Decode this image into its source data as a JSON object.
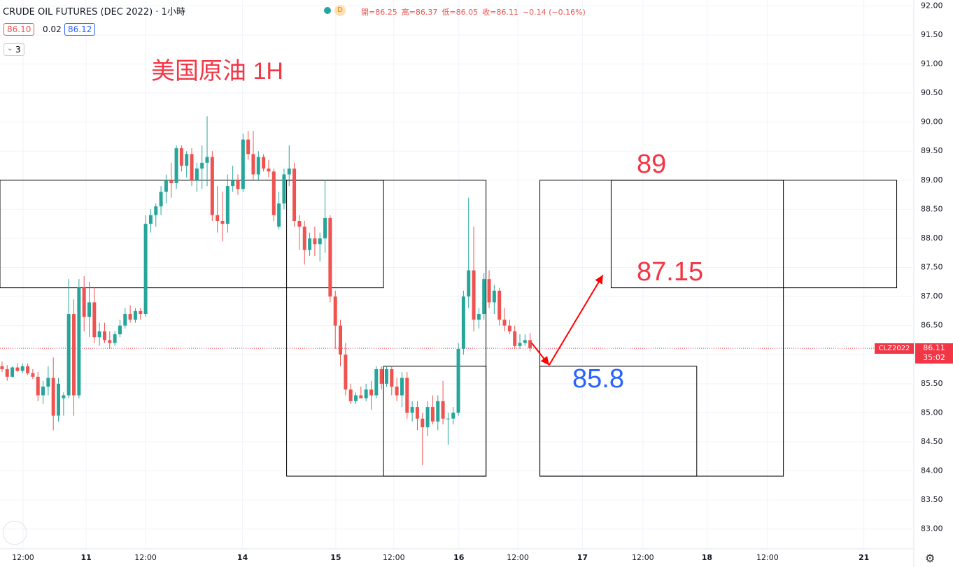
{
  "chart_data": {
    "type": "candlestick",
    "title": "CRUDE OIL FUTURES (DEC 2022) · 1小時",
    "bid": "86.10",
    "spread": "0.02",
    "ask": "86.12",
    "indicator_count": "3",
    "ohlc_legend": [
      "開=86.25",
      "高=86.37",
      "低=86.05",
      "收=86.11",
      "−0.14 (−0.16%)"
    ],
    "annotations": [
      "美国原油 1H",
      "89",
      "87.15",
      "85.8"
    ],
    "symbol": "CLZ2022",
    "last_price": 86.11,
    "countdown": "35:02",
    "up_color": "#26a69a",
    "down_color": "#ef5350",
    "grid": true,
    "ylim": [
      82.66,
      92.1
    ],
    "yticks": [
      {
        "value": 83,
        "label": "83.00"
      },
      {
        "value": 83.5,
        "label": "83.50"
      },
      {
        "value": 84,
        "label": "84.00"
      },
      {
        "value": 84.5,
        "label": "84.50"
      },
      {
        "value": 85,
        "label": "85.00"
      },
      {
        "value": 85.5,
        "label": "85.50"
      },
      {
        "value": 86,
        "label": "86.00"
      },
      {
        "value": 86.5,
        "label": "86.50"
      },
      {
        "value": 87,
        "label": "87.00"
      },
      {
        "value": 87.5,
        "label": "87.50"
      },
      {
        "value": 88,
        "label": "88.00"
      },
      {
        "value": 88.5,
        "label": "88.50"
      },
      {
        "value": 89,
        "label": "89.00"
      },
      {
        "value": 89.5,
        "label": "89.50"
      },
      {
        "value": 90,
        "label": "90.00"
      },
      {
        "value": 90.5,
        "label": "90.50"
      },
      {
        "value": 91,
        "label": "91.00"
      },
      {
        "value": 91.5,
        "label": "91.50"
      },
      {
        "value": 92,
        "label": "92.00"
      }
    ],
    "xlim": [
      -0.4,
      177.7
    ],
    "xticks": [
      {
        "value": 4.1,
        "label": "12:00"
      },
      {
        "value": 16.4,
        "label": "11"
      },
      {
        "value": 28,
        "label": "12:00"
      },
      {
        "value": 46.9,
        "label": "14"
      },
      {
        "value": 65.1,
        "label": "15"
      },
      {
        "value": 76.4,
        "label": "12:00"
      },
      {
        "value": 89.1,
        "label": "16"
      },
      {
        "value": 100.6,
        "label": "12:00"
      },
      {
        "value": 113.2,
        "label": "17"
      },
      {
        "value": 125,
        "label": "12:00"
      },
      {
        "value": 137.5,
        "label": "18"
      },
      {
        "value": 149.3,
        "label": "12:00"
      },
      {
        "value": 168.1,
        "label": "21"
      }
    ],
    "ohlc": [
      [
        85.8,
        85.88,
        85.7,
        85.75
      ],
      [
        85.75,
        85.82,
        85.55,
        85.62
      ],
      [
        85.62,
        85.8,
        85.6,
        85.78
      ],
      [
        85.78,
        85.85,
        85.7,
        85.72
      ],
      [
        85.72,
        85.85,
        85.68,
        85.8
      ],
      [
        85.8,
        85.85,
        85.65,
        85.68
      ],
      [
        85.68,
        85.75,
        85.58,
        85.62
      ],
      [
        85.62,
        85.7,
        85.2,
        85.3
      ],
      [
        85.3,
        85.55,
        85.15,
        85.45
      ],
      [
        85.45,
        85.8,
        85.3,
        85.6
      ],
      [
        85.6,
        85.95,
        84.7,
        84.95
      ],
      [
        84.95,
        85.6,
        84.85,
        85.5
      ],
      [
        85.25,
        85.35,
        84.95,
        85.3
      ],
      [
        85.3,
        87.3,
        85.25,
        86.7
      ],
      [
        86.7,
        86.95,
        84.95,
        85.3
      ],
      [
        85.3,
        87.3,
        85.25,
        87.15
      ],
      [
        87.15,
        87.35,
        86.4,
        86.65
      ],
      [
        86.65,
        87.25,
        86.3,
        86.9
      ],
      [
        86.9,
        87.15,
        86.2,
        86.3
      ],
      [
        86.3,
        86.55,
        86.15,
        86.4
      ],
      [
        86.4,
        86.55,
        86.2,
        86.25
      ],
      [
        86.25,
        86.4,
        86.1,
        86.2
      ],
      [
        86.2,
        86.4,
        86.15,
        86.35
      ],
      [
        86.35,
        86.6,
        86.3,
        86.5
      ],
      [
        86.5,
        86.8,
        86.45,
        86.7
      ],
      [
        86.7,
        86.85,
        86.55,
        86.6
      ],
      [
        86.6,
        86.8,
        86.55,
        86.75
      ],
      [
        86.75,
        86.8,
        86.6,
        86.7
      ],
      [
        86.7,
        88.4,
        86.65,
        88.25
      ],
      [
        88.25,
        88.5,
        88.1,
        88.4
      ],
      [
        88.4,
        88.6,
        88.2,
        88.55
      ],
      [
        88.55,
        88.9,
        88.4,
        88.8
      ],
      [
        88.8,
        89.1,
        88.6,
        89.0
      ],
      [
        89.0,
        89.3,
        88.7,
        88.95
      ],
      [
        88.95,
        89.6,
        88.85,
        89.55
      ],
      [
        89.55,
        89.6,
        89.15,
        89.25
      ],
      [
        89.25,
        89.5,
        89.05,
        89.45
      ],
      [
        89.45,
        89.55,
        88.9,
        89.0
      ],
      [
        89.0,
        89.3,
        88.8,
        89.2
      ],
      [
        89.2,
        89.6,
        88.85,
        89.3
      ],
      [
        89.3,
        90.1,
        88.9,
        89.4
      ],
      [
        89.4,
        89.5,
        88.3,
        88.4
      ],
      [
        88.4,
        88.9,
        88.1,
        88.3
      ],
      [
        88.3,
        88.8,
        87.95,
        88.25
      ],
      [
        88.25,
        89.1,
        88.1,
        88.9
      ],
      [
        88.9,
        89.25,
        88.8,
        89.0
      ],
      [
        89.0,
        89.1,
        88.75,
        88.85
      ],
      [
        88.85,
        89.8,
        88.8,
        89.7
      ],
      [
        89.7,
        89.85,
        89.35,
        89.45
      ],
      [
        89.45,
        89.85,
        89.0,
        89.1
      ],
      [
        89.1,
        89.5,
        89.0,
        89.4
      ],
      [
        89.4,
        89.45,
        89.15,
        89.2
      ],
      [
        89.2,
        89.35,
        89.05,
        89.15
      ],
      [
        89.15,
        89.2,
        88.3,
        88.4
      ],
      [
        88.2,
        88.8,
        88.15,
        88.6
      ],
      [
        88.6,
        89.2,
        88.5,
        89.1
      ],
      [
        89.1,
        89.6,
        88.9,
        89.2
      ],
      [
        89.2,
        89.3,
        88.2,
        88.3
      ],
      [
        88.3,
        88.4,
        87.8,
        88.2
      ],
      [
        88.2,
        88.3,
        87.55,
        87.8
      ],
      [
        87.8,
        88.1,
        87.7,
        88.0
      ],
      [
        88.0,
        88.2,
        87.7,
        87.9
      ],
      [
        87.9,
        88.1,
        87.6,
        88.0
      ],
      [
        88.0,
        89.0,
        87.75,
        88.35
      ],
      [
        88.35,
        88.4,
        86.9,
        87.0
      ],
      [
        87.0,
        87.1,
        86.1,
        86.5
      ],
      [
        86.5,
        86.6,
        85.8,
        86.0
      ],
      [
        86.0,
        86.2,
        85.3,
        85.4
      ],
      [
        85.4,
        85.5,
        85.15,
        85.2
      ],
      [
        85.2,
        85.35,
        85.15,
        85.3
      ],
      [
        85.3,
        85.45,
        85.25,
        85.25
      ],
      [
        85.25,
        85.5,
        85.2,
        85.4
      ],
      [
        85.4,
        85.55,
        85.05,
        85.3
      ],
      [
        85.3,
        85.8,
        85.25,
        85.75
      ],
      [
        85.75,
        85.8,
        85.4,
        85.5
      ],
      [
        85.5,
        85.8,
        85.45,
        85.75
      ],
      [
        85.75,
        85.8,
        85.3,
        85.45
      ],
      [
        85.45,
        85.6,
        85.2,
        85.3
      ],
      [
        85.3,
        85.7,
        85.1,
        85.6
      ],
      [
        85.6,
        85.7,
        84.9,
        85.0
      ],
      [
        85.0,
        85.2,
        84.85,
        85.1
      ],
      [
        85.1,
        85.2,
        84.7,
        84.9
      ],
      [
        84.9,
        85.0,
        84.1,
        84.75
      ],
      [
        84.75,
        85.2,
        84.6,
        85.1
      ],
      [
        85.1,
        85.3,
        84.8,
        84.85
      ],
      [
        84.85,
        85.3,
        84.7,
        85.2
      ],
      [
        85.2,
        85.55,
        84.8,
        84.9
      ],
      [
        84.9,
        85.0,
        84.45,
        84.9
      ],
      [
        84.9,
        85.1,
        84.8,
        85.0
      ],
      [
        85.0,
        86.2,
        84.95,
        86.1
      ],
      [
        86.1,
        87.1,
        86.0,
        87.0
      ],
      [
        87.0,
        88.7,
        86.8,
        87.45
      ],
      [
        87.45,
        88.2,
        86.4,
        86.6
      ],
      [
        86.6,
        86.8,
        86.45,
        86.7
      ],
      [
        86.7,
        87.4,
        86.6,
        87.3
      ],
      [
        87.3,
        87.45,
        86.8,
        86.9
      ],
      [
        86.9,
        87.2,
        86.7,
        87.1
      ],
      [
        87.1,
        87.15,
        86.5,
        86.6
      ],
      [
        86.6,
        86.8,
        86.4,
        86.5
      ],
      [
        86.5,
        86.6,
        86.35,
        86.4
      ],
      [
        86.4,
        86.5,
        86.1,
        86.15
      ],
      [
        86.15,
        86.35,
        86.1,
        86.2
      ],
      [
        86.2,
        86.35,
        86.15,
        86.25
      ],
      [
        86.25,
        86.37,
        86.05,
        86.11
      ]
    ],
    "rectangles": [
      {
        "x0": -0.4,
        "x1": 74.4,
        "y0": 87.15,
        "y1": 89
      },
      {
        "x0": 55.5,
        "x1": 94.4,
        "y0": 83.91,
        "y1": 89
      },
      {
        "x0": 74.4,
        "x1": 94.4,
        "y0": 83.91,
        "y1": 85.8
      },
      {
        "x0": 104.9,
        "x1": 152.4,
        "y0": 83.91,
        "y1": 89
      },
      {
        "x0": 118.8,
        "x1": 174.5,
        "y0": 87.15,
        "y1": 89
      },
      {
        "x0": 104.9,
        "x1": 135.5,
        "y0": 83.91,
        "y1": 85.8
      }
    ],
    "arrows": [
      {
        "x0": 103.3,
        "y0": 86.2,
        "x1": 106.7,
        "y1": 85.82
      },
      {
        "x0": 106.7,
        "y0": 85.82,
        "x1": 117.2,
        "y1": 87.37
      }
    ]
  }
}
